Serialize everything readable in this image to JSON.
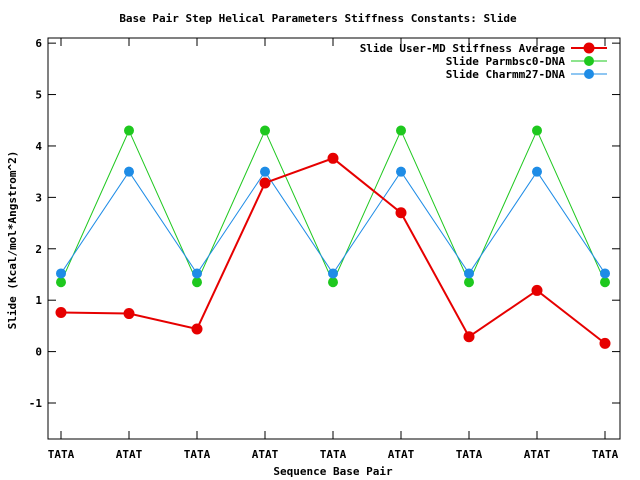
{
  "chart_data": {
    "type": "line",
    "title": "Base Pair Step Helical Parameters Stiffness Constants: Slide",
    "xlabel": "Sequence Base Pair",
    "ylabel": "Slide (Kcal/mol*Angstrom^2)",
    "categories": [
      "TATA",
      "ATAT",
      "TATA",
      "ATAT",
      "TATA",
      "ATAT",
      "TATA",
      "ATAT",
      "TATA"
    ],
    "ylim": [
      -1.7,
      6.1
    ],
    "yticks": [
      -1,
      0,
      1,
      2,
      3,
      4,
      5,
      6
    ],
    "grid": false,
    "legend_position": "top-right",
    "series": [
      {
        "name": "Slide User-MD Stiffness Average",
        "color": "#e60000",
        "values": [
          0.76,
          0.74,
          0.44,
          3.28,
          3.76,
          2.7,
          0.29,
          1.19,
          0.16
        ]
      },
      {
        "name": "Slide Parmbsc0-DNA",
        "color": "#1ec81e",
        "values": [
          1.35,
          4.3,
          1.35,
          4.3,
          1.35,
          4.3,
          1.35,
          4.3,
          1.35
        ]
      },
      {
        "name": "Slide Charmm27-DNA",
        "color": "#1e8ce6",
        "values": [
          1.52,
          3.5,
          1.52,
          3.5,
          1.52,
          3.5,
          1.52,
          3.5,
          1.52
        ]
      }
    ]
  }
}
